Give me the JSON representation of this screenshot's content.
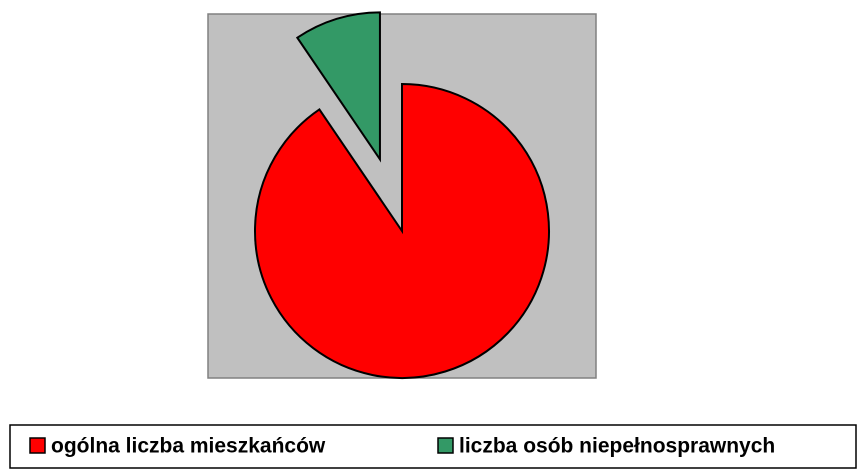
{
  "chart_data": {
    "type": "pie",
    "categories": [
      "ogólna liczba mieszkańców",
      "liczba osób niepełnosprawnych"
    ],
    "values": [
      90.5,
      9.5
    ],
    "colors": [
      "#ff0000",
      "#339966"
    ],
    "exploded": [
      false,
      true
    ],
    "legend": "bottom"
  }
}
